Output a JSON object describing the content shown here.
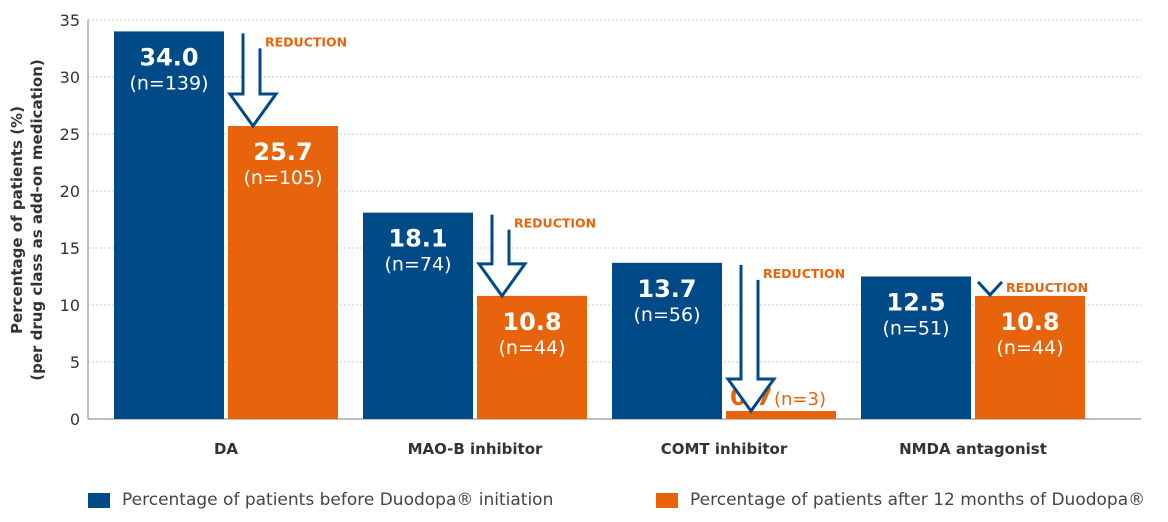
{
  "chart_data": {
    "type": "bar",
    "title": "",
    "ylabel_lines": [
      "Percentage of patients (%)",
      "(per drug class as add-on medication)"
    ],
    "xlabel": "",
    "ylim": [
      0,
      35
    ],
    "yticks": [
      0,
      5,
      10,
      15,
      20,
      25,
      30,
      35
    ],
    "grid": true,
    "categories": [
      "DA",
      "MAO-B inhibitor",
      "COMT inhibitor",
      "NMDA antagonist"
    ],
    "series": [
      {
        "name": "Percentage of patients before Duodopa® initiation",
        "color": "#004a87",
        "values": [
          34.0,
          18.1,
          13.7,
          12.5
        ],
        "labels": [
          "34.0",
          "18.1",
          "13.7",
          "12.5"
        ],
        "n_labels": [
          "(n=139)",
          "(n=74)",
          "(n=56)",
          "(n=51)"
        ]
      },
      {
        "name": "Percentage of patients after 12 months of Duodopa®",
        "color": "#e8640c",
        "values": [
          25.7,
          10.8,
          0.7,
          10.8
        ],
        "labels": [
          "25.7",
          "10.8",
          "0.7",
          "10.8"
        ],
        "n_labels": [
          "(n=105)",
          "(n=44)",
          "(n=3)",
          "(n=44)"
        ]
      }
    ],
    "annotations": [
      "REDUCTION",
      "REDUCTION",
      "REDUCTION",
      "REDUCTION"
    ],
    "annotation_color": "#e8640c",
    "arrow_color": "#004a87",
    "legend_position": "bottom"
  }
}
